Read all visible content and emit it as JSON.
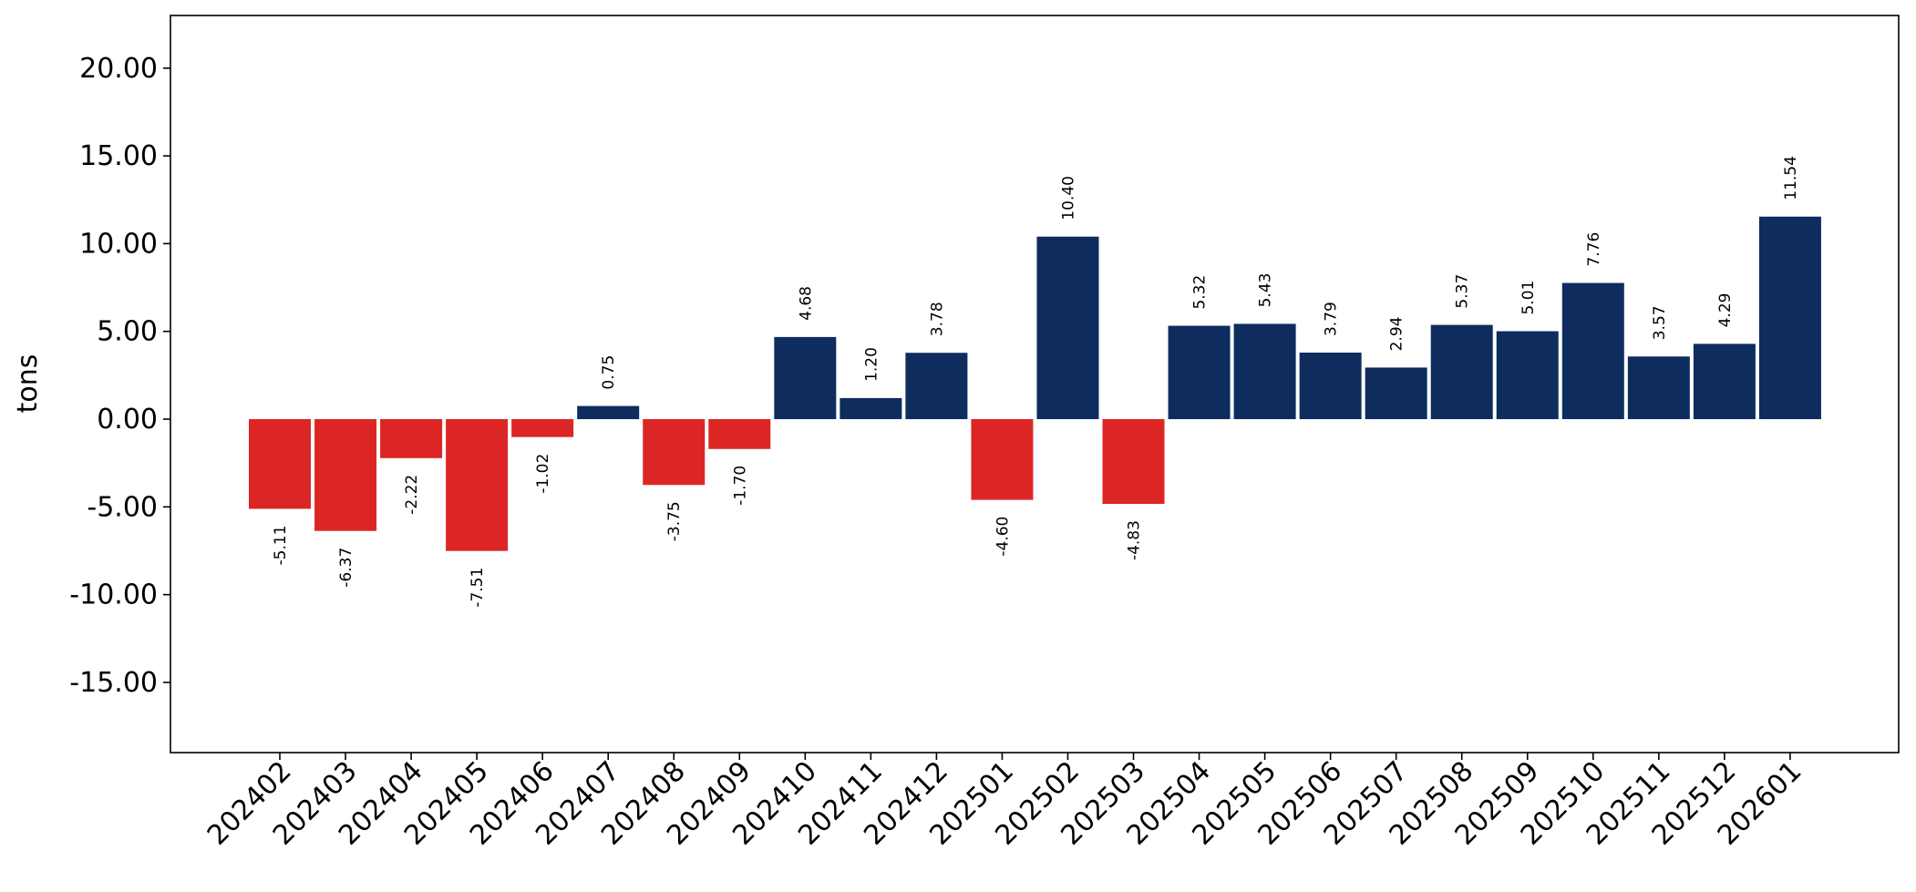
{
  "colors": {
    "positive": "#0e2c5e",
    "negative": "#dc2626",
    "axis": "#000000",
    "background": "#ffffff"
  },
  "chart_data": {
    "type": "bar",
    "ylabel": "tons",
    "xlabel": "",
    "title": "",
    "ylim": [
      -19,
      23
    ],
    "yticks": [
      20,
      15,
      10,
      5,
      0,
      -5,
      -10,
      -15
    ],
    "ytick_labels": [
      "20.00",
      "15.00",
      "10.00",
      "5.00",
      "0.00",
      "-5.00",
      "-10.00",
      "-15.00"
    ],
    "grid": false,
    "categories": [
      "202402",
      "202403",
      "202404",
      "202405",
      "202406",
      "202407",
      "202408",
      "202409",
      "202410",
      "202411",
      "202412",
      "202501",
      "202502",
      "202503",
      "202504",
      "202505",
      "202506",
      "202507",
      "202508",
      "202509",
      "202510",
      "202511",
      "202512",
      "202601"
    ],
    "values": [
      -5.11,
      -6.37,
      -2.22,
      -7.51,
      -1.02,
      0.75,
      -3.75,
      -1.7,
      4.68,
      1.2,
      3.78,
      -4.6,
      10.4,
      -4.83,
      5.32,
      5.43,
      3.79,
      2.94,
      5.37,
      5.01,
      7.76,
      3.57,
      4.29,
      11.54
    ],
    "value_labels": [
      "-5.11",
      "-6.37",
      "-2.22",
      "-7.51",
      "-1.02",
      "0.75",
      "-3.75",
      "-1.70",
      "4.68",
      "1.20",
      "3.78",
      "-4.60",
      "10.40",
      "-4.83",
      "5.32",
      "5.43",
      "3.79",
      "2.94",
      "5.37",
      "5.01",
      "7.76",
      "3.57",
      "4.29",
      "11.54"
    ]
  }
}
